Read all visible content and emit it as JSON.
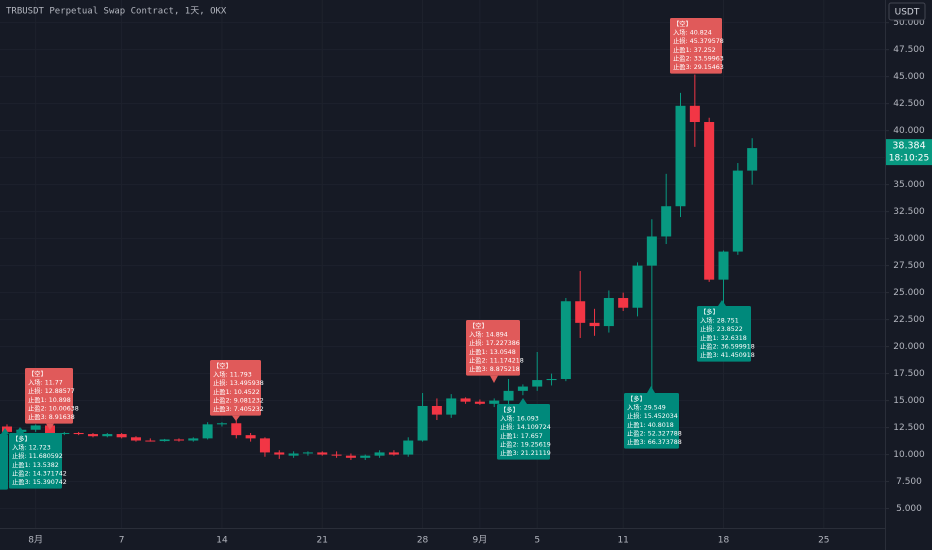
{
  "chart_data": {
    "type": "candlestick",
    "title": "TRBUSDT Perpetual Swap Contract, 1天, OKX",
    "currency": "USDT",
    "countdown": "18:10:25",
    "up_color": "#089981",
    "down_color": "#f23645",
    "grid": true,
    "categories": [
      null,
      null,
      "8月",
      null,
      null,
      null,
      null,
      null,
      "7",
      null,
      null,
      null,
      null,
      null,
      null,
      "14",
      null,
      null,
      null,
      null,
      null,
      null,
      "21",
      null,
      null,
      null,
      null,
      null,
      null,
      "28",
      null,
      null,
      null,
      "9月",
      null,
      null,
      null,
      "5",
      null,
      null,
      null,
      null,
      null,
      "11",
      null,
      null,
      null,
      null,
      null,
      null,
      "18",
      null,
      null,
      null,
      null,
      null,
      null,
      "25",
      null,
      null
    ],
    "open": [
      12.6,
      12.1,
      12.3,
      12.7,
      11.95,
      12.0,
      11.9,
      11.7,
      11.9,
      11.6,
      11.3,
      11.25,
      11.4,
      11.3,
      11.5,
      12.8,
      12.9,
      11.8,
      11.5,
      10.2,
      9.9,
      10.1,
      10.2,
      10.0,
      9.9,
      9.7,
      9.9,
      10.2,
      10.0,
      11.3,
      14.5,
      13.7,
      15.2,
      14.9,
      14.7,
      15.0,
      15.9,
      16.3,
      16.9,
      17.0,
      24.2,
      22.2,
      21.9,
      24.5,
      23.6,
      27.5,
      30.2,
      33.0,
      42.3,
      40.8,
      26.2,
      28.8,
      36.3,
      null,
      null,
      null,
      null,
      null,
      null,
      null
    ],
    "high": [
      12.8,
      12.4,
      12.8,
      13.0,
      12.1,
      12.1,
      12.0,
      12.0,
      12.0,
      11.7,
      11.5,
      11.45,
      11.5,
      11.6,
      13.0,
      13.0,
      13.2,
      12.0,
      11.6,
      10.4,
      10.3,
      10.3,
      10.3,
      10.3,
      10.1,
      10.0,
      10.4,
      10.4,
      11.6,
      15.7,
      15.2,
      15.6,
      15.3,
      15.1,
      15.2,
      17.0,
      16.5,
      19.5,
      17.5,
      24.5,
      27.0,
      23.5,
      25.2,
      25.0,
      27.8,
      31.8,
      36.0,
      43.5,
      45.2,
      41.2,
      28.9,
      37.0,
      39.3,
      null,
      null,
      null,
      null,
      null,
      null,
      null
    ],
    "low": [
      11.9,
      11.8,
      12.1,
      11.8,
      11.8,
      11.8,
      11.6,
      11.6,
      11.5,
      11.2,
      11.2,
      11.2,
      11.2,
      11.2,
      11.4,
      12.6,
      11.5,
      11.2,
      9.8,
      9.6,
      9.7,
      9.9,
      9.9,
      9.7,
      9.5,
      9.5,
      9.7,
      9.9,
      9.8,
      11.2,
      13.2,
      13.4,
      14.7,
      14.6,
      14.4,
      14.4,
      15.5,
      15.9,
      16.4,
      16.8,
      20.8,
      21.0,
      21.3,
      23.3,
      22.8,
      15.0,
      29.5,
      32.0,
      38.5,
      26.0,
      23.7,
      28.5,
      35.0,
      null,
      null,
      null,
      null,
      null,
      null,
      null
    ],
    "close": [
      12.1,
      12.3,
      12.7,
      12.0,
      12.0,
      11.9,
      11.7,
      11.9,
      11.6,
      11.3,
      11.25,
      11.4,
      11.3,
      11.5,
      12.8,
      12.9,
      11.8,
      11.5,
      10.2,
      10.0,
      10.1,
      10.2,
      10.0,
      9.9,
      9.7,
      9.9,
      10.2,
      10.0,
      11.3,
      14.5,
      13.7,
      15.2,
      14.9,
      14.7,
      15.0,
      15.9,
      16.3,
      16.9,
      17.0,
      24.2,
      22.2,
      21.9,
      24.5,
      23.6,
      27.5,
      30.2,
      33.0,
      42.3,
      40.8,
      26.2,
      28.8,
      36.3,
      38.384,
      null,
      null,
      null,
      null,
      null,
      null,
      null
    ],
    "ylim": [
      3.2,
      52.1
    ],
    "yticks": [
      {
        "value": 5,
        "label": "5.000"
      },
      {
        "value": 7.5,
        "label": "7.500"
      },
      {
        "value": 10,
        "label": "10.000"
      },
      {
        "value": 12.5,
        "label": "12.500"
      },
      {
        "value": 15,
        "label": "15.000"
      },
      {
        "value": 17.5,
        "label": "17.500"
      },
      {
        "value": 20,
        "label": "20.000"
      },
      {
        "value": 22.5,
        "label": "22.500"
      },
      {
        "value": 25,
        "label": "25.000"
      },
      {
        "value": 27.5,
        "label": "27.500"
      },
      {
        "value": 30,
        "label": "30.000"
      },
      {
        "value": 32.5,
        "label": "32.500"
      },
      {
        "value": 35,
        "label": "35.000"
      },
      {
        "value": 37.5,
        "label": "37.500"
      },
      {
        "value": 40,
        "label": "40.000"
      },
      {
        "value": 42.5,
        "label": "42.500"
      },
      {
        "value": 45,
        "label": "45.000"
      },
      {
        "value": 47.5,
        "label": "47.500"
      },
      {
        "value": 50,
        "label": "50.000"
      }
    ],
    "annotations": [
      {
        "color": "#00897b",
        "lines": [
          "【多",
          "入场",
          "止损",
          "止盈",
          "止盈",
          "止盈"
        ]
      },
      {
        "color": "#00897b",
        "lines": [
          "【多】",
          "入场: 12.723",
          "止损: 11.680592",
          "止盈1: 13.5382",
          "止盈2: 14.371742",
          "止盈3: 15.390742"
        ]
      },
      {
        "color": "#e05a5a",
        "lines": [
          "【空】",
          "入场: 11.77",
          "止损: 12.88577",
          "止盈1: 10.898",
          "止盈2: 10.00638",
          "止盈3: 8.91638"
        ]
      },
      {
        "color": "#e05a5a",
        "lines": [
          "【空】",
          "入场: 11.793",
          "止损: 13.495938",
          "止盈1: 10.4522",
          "止盈2: 9.081232",
          "止盈3: 7.405232"
        ]
      },
      {
        "color": "#e05a5a",
        "lines": [
          "【空】",
          "入场: 14.894",
          "止损: 17.227386",
          "止盈1: 13.0548",
          "止盈2: 11.174218",
          "止盈3: 8.875218"
        ]
      },
      {
        "color": "#00897b",
        "lines": [
          "【多】",
          "入场: 16.093",
          "止损: 14.109724",
          "止盈1: 17.657",
          "止盈2: 19.25619",
          "止盈3: 21.21119"
        ]
      },
      {
        "color": "#00897b",
        "lines": [
          "【多】",
          "入场: 29.549",
          "止损: 15.452034",
          "止盈1: 40.8018",
          "止盈2: 52.327788",
          "止盈3: 66.373788"
        ]
      },
      {
        "color": "#e05a5a",
        "lines": [
          "【空】",
          "入场: 40.824",
          "止损: 45.379578",
          "止盈1: 37.252",
          "止盈2: 33.59963",
          "止盈3: 29.15463"
        ]
      },
      {
        "color": "#00897b",
        "lines": [
          "【多】",
          "入场: 28.751",
          "止损: 23.8522",
          "止盈1: 32.6318",
          "止盈2: 36.599918",
          "止盈3: 41.450918"
        ]
      }
    ]
  }
}
